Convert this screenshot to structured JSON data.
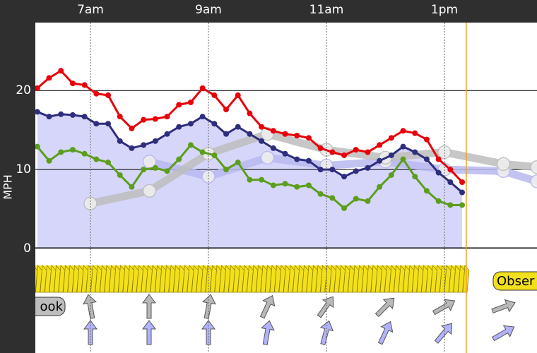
{
  "chart_data": {
    "type": "line",
    "ylabel": "MPH",
    "xlim": [
      6.066,
      14.569
    ],
    "ylim": [
      0,
      28.6
    ],
    "xticks": [
      {
        "value": 7,
        "label": "7am"
      },
      {
        "value": 9,
        "label": "9am"
      },
      {
        "value": 11,
        "label": "11am"
      },
      {
        "value": 13,
        "label": "1pm"
      }
    ],
    "yticks": [
      0,
      10,
      20
    ],
    "grid": true,
    "now_x": 13.37,
    "x": [
      6.1,
      6.3,
      6.5,
      6.7,
      6.9,
      7.1,
      7.3,
      7.5,
      7.7,
      7.9,
      8.1,
      8.3,
      8.5,
      8.7,
      8.9,
      9.1,
      9.3,
      9.5,
      9.7,
      9.9,
      10.1,
      10.3,
      10.5,
      10.7,
      10.9,
      11.1,
      11.3,
      11.5,
      11.7,
      11.9,
      12.1,
      12.3,
      12.5,
      12.7,
      12.9,
      13.1,
      13.3
    ],
    "series": [
      {
        "color": "#e8000a",
        "values": [
          20.3,
          21.6,
          22.5,
          20.9,
          20.7,
          19.6,
          19.4,
          16.7,
          15.2,
          16.3,
          16.4,
          16.7,
          18.2,
          18.5,
          20.3,
          19.4,
          17.6,
          19.4,
          17.1,
          15.4,
          14.9,
          14.5,
          14.3,
          14.0,
          12.7,
          12.2,
          11.8,
          12.5,
          12.2,
          13.1,
          14.0,
          14.9,
          14.6,
          13.8,
          11.3,
          10.0,
          8.4
        ]
      },
      {
        "color": "#2e2e7e",
        "area": "#d6d6fb",
        "values": [
          17.3,
          16.7,
          17.0,
          16.9,
          16.7,
          15.8,
          15.8,
          13.6,
          12.7,
          13.1,
          13.6,
          14.5,
          15.4,
          15.8,
          16.7,
          15.8,
          14.5,
          15.4,
          14.5,
          13.6,
          12.7,
          12.0,
          11.3,
          11.1,
          10.0,
          10.0,
          9.1,
          9.8,
          10.2,
          11.1,
          11.8,
          12.9,
          12.2,
          11.3,
          9.6,
          8.4,
          7.1
        ]
      },
      {
        "color": "#5c9e1c",
        "values": [
          12.9,
          11.1,
          12.2,
          12.5,
          12.0,
          11.3,
          10.9,
          9.3,
          7.8,
          10.0,
          10.2,
          9.8,
          11.3,
          13.1,
          12.2,
          11.8,
          10.0,
          10.9,
          8.7,
          8.7,
          8.0,
          8.2,
          7.8,
          8.0,
          6.9,
          6.4,
          5.1,
          6.3,
          6.0,
          7.8,
          9.3,
          11.3,
          9.1,
          7.3,
          6.0,
          5.5,
          5.5
        ]
      }
    ],
    "forecasts": [
      {
        "color": "#b9b9ef",
        "x": [
          8,
          9,
          10,
          11,
          12,
          13,
          14,
          14.569
        ],
        "values": [
          11.0,
          9.1,
          11.5,
          10.5,
          11.0,
          10.0,
          9.8,
          8.5
        ]
      },
      {
        "color": "#bdbdbd",
        "x": [
          7,
          8,
          9,
          10,
          11,
          12,
          13,
          14,
          14.569
        ],
        "values": [
          5.7,
          7.3,
          12.0,
          14.5,
          12.5,
          11.5,
          12.2,
          10.7,
          10.3
        ]
      }
    ],
    "labels": {
      "outlook": "ook",
      "observed": "Obser"
    }
  }
}
